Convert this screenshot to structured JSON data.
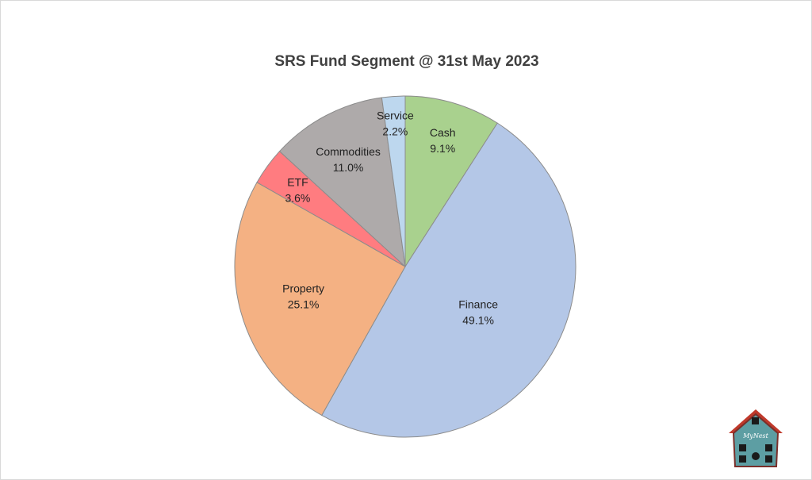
{
  "chart_data": {
    "type": "pie",
    "title": "SRS Fund Segment @ 31st May 2023",
    "slices": [
      {
        "label": "Cash",
        "value": 9.1,
        "value_label": "9.1%",
        "color": "#a9d18e"
      },
      {
        "label": "Finance",
        "value": 49.1,
        "value_label": "49.1%",
        "color": "#b4c7e7"
      },
      {
        "label": "Property",
        "value": 25.1,
        "value_label": "25.1%",
        "color": "#f4b183"
      },
      {
        "label": "ETF",
        "value": 3.6,
        "value_label": "3.6%",
        "color": "#ff7c80"
      },
      {
        "label": "Commodities",
        "value": 11.0,
        "value_label": "11.0%",
        "color": "#aeaaaa"
      },
      {
        "label": "Service",
        "value": 2.2,
        "value_label": "2.2%",
        "color": "#bdd7ee"
      }
    ],
    "start_angle": "12 o'clock",
    "direction": "clockwise"
  },
  "logo": {
    "text": "MyNest",
    "roof_color": "#c0392b",
    "house_color": "#5d9ea3"
  }
}
